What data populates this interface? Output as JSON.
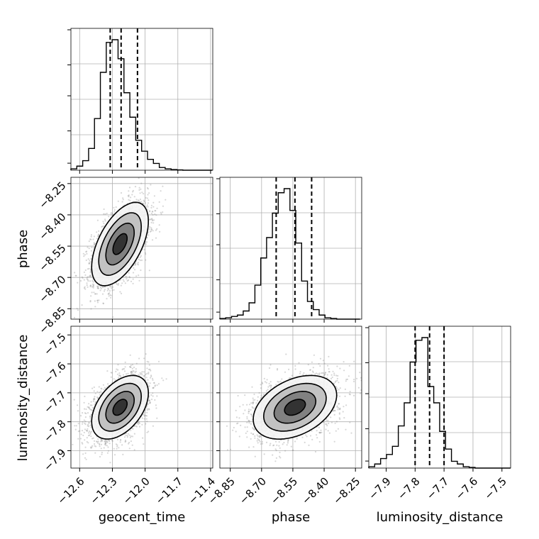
{
  "chart_data": {
    "type": "corner",
    "parameters": [
      "geocent_time",
      "phase",
      "luminosity_distance"
    ],
    "axis_labels": {
      "geocent_time": "geocent_time",
      "phase": "phase",
      "luminosity_distance": "luminosity_distance"
    },
    "ranges": {
      "geocent_time": [
        -12.68,
        -11.38
      ],
      "phase": [
        -8.9,
        -8.22
      ],
      "luminosity_distance": [
        -7.96,
        -7.47
      ]
    },
    "ticks": {
      "geocent_time": [
        -12.6,
        -12.3,
        -12.0,
        -11.7,
        -11.4
      ],
      "phase": [
        -8.85,
        -8.7,
        -8.55,
        -8.4,
        -8.25
      ],
      "luminosity_distance": [
        -7.9,
        -7.8,
        -7.7,
        -7.6,
        -7.5
      ]
    },
    "tick_labels": {
      "geocent_time": [
        "−12.6",
        "−12.3",
        "−12.0",
        "−11.7",
        "−11.4"
      ],
      "phase": [
        "−8.85",
        "−8.70",
        "−8.55",
        "−8.40",
        "−8.25"
      ],
      "luminosity_distance": [
        "−7.9",
        "−7.8",
        "−7.7",
        "−7.6",
        "−7.5"
      ]
    },
    "quantiles": {
      "geocent_time": [
        -12.32,
        -12.22,
        -12.07
      ],
      "phase": [
        -8.63,
        -8.54,
        -8.46
      ],
      "luminosity_distance": [
        -7.8,
        -7.75,
        -7.7
      ]
    },
    "histograms": {
      "geocent_time": {
        "edges": [
          -12.68,
          -12.626,
          -12.572,
          -12.518,
          -12.464,
          -12.41,
          -12.356,
          -12.302,
          -12.248,
          -12.194,
          -12.14,
          -12.086,
          -12.032,
          -11.978,
          -11.924,
          -11.87,
          -11.816,
          -11.762,
          -11.708,
          -11.654,
          -11.6,
          -11.546,
          -11.492,
          -11.438,
          -11.384
        ],
        "counts": [
          0.01,
          0.03,
          0.07,
          0.16,
          0.38,
          0.72,
          0.94,
          0.96,
          0.82,
          0.57,
          0.39,
          0.22,
          0.14,
          0.08,
          0.05,
          0.02,
          0.01,
          0.005,
          0.002,
          0,
          0,
          0,
          0,
          0
        ]
      },
      "phase": {
        "edges": [
          -8.9,
          -8.872,
          -8.844,
          -8.816,
          -8.788,
          -8.76,
          -8.732,
          -8.704,
          -8.676,
          -8.648,
          -8.62,
          -8.592,
          -8.564,
          -8.536,
          -8.508,
          -8.48,
          -8.452,
          -8.424,
          -8.396,
          -8.368,
          -8.34,
          -8.312,
          -8.284,
          -8.256,
          -8.228
        ],
        "counts": [
          0.005,
          0.01,
          0.02,
          0.03,
          0.06,
          0.12,
          0.25,
          0.45,
          0.6,
          0.78,
          0.93,
          0.96,
          0.8,
          0.56,
          0.28,
          0.13,
          0.07,
          0.03,
          0.01,
          0.005,
          0,
          0,
          0,
          0
        ]
      },
      "luminosity_distance": {
        "edges": [
          -7.96,
          -7.9396,
          -7.9192,
          -7.8988,
          -7.8784,
          -7.858,
          -7.8376,
          -7.8172,
          -7.7968,
          -7.7764,
          -7.756,
          -7.7356,
          -7.7152,
          -7.6948,
          -7.6744,
          -7.654,
          -7.6336,
          -7.6132,
          -7.5928,
          -7.5724,
          -7.552,
          -7.5316,
          -7.5112,
          -7.4908,
          -7.4704
        ],
        "counts": [
          0.01,
          0.03,
          0.07,
          0.1,
          0.16,
          0.31,
          0.48,
          0.78,
          0.94,
          0.96,
          0.6,
          0.48,
          0.27,
          0.14,
          0.05,
          0.03,
          0.01,
          0.005,
          0,
          0,
          0,
          0,
          0,
          0
        ]
      }
    },
    "pairs": [
      {
        "x": "geocent_time",
        "y": "phase",
        "mean": [
          -12.23,
          -8.54
        ],
        "std": [
          0.13,
          0.1
        ],
        "rho": 0.55
      },
      {
        "x": "geocent_time",
        "y": "luminosity_distance",
        "mean": [
          -12.23,
          -7.75
        ],
        "std": [
          0.13,
          0.055
        ],
        "rho": 0.45
      },
      {
        "x": "phase",
        "y": "luminosity_distance",
        "mean": [
          -8.54,
          -7.75
        ],
        "std": [
          0.1,
          0.055
        ],
        "rho": 0.38
      }
    ],
    "contour_levels_sigma": [
      0.5,
      1.0,
      1.5,
      2.0
    ],
    "grid": true,
    "colors": {
      "line": "#000000",
      "grid": "#b0b0b0",
      "scatter": "#8c8c8c"
    }
  }
}
